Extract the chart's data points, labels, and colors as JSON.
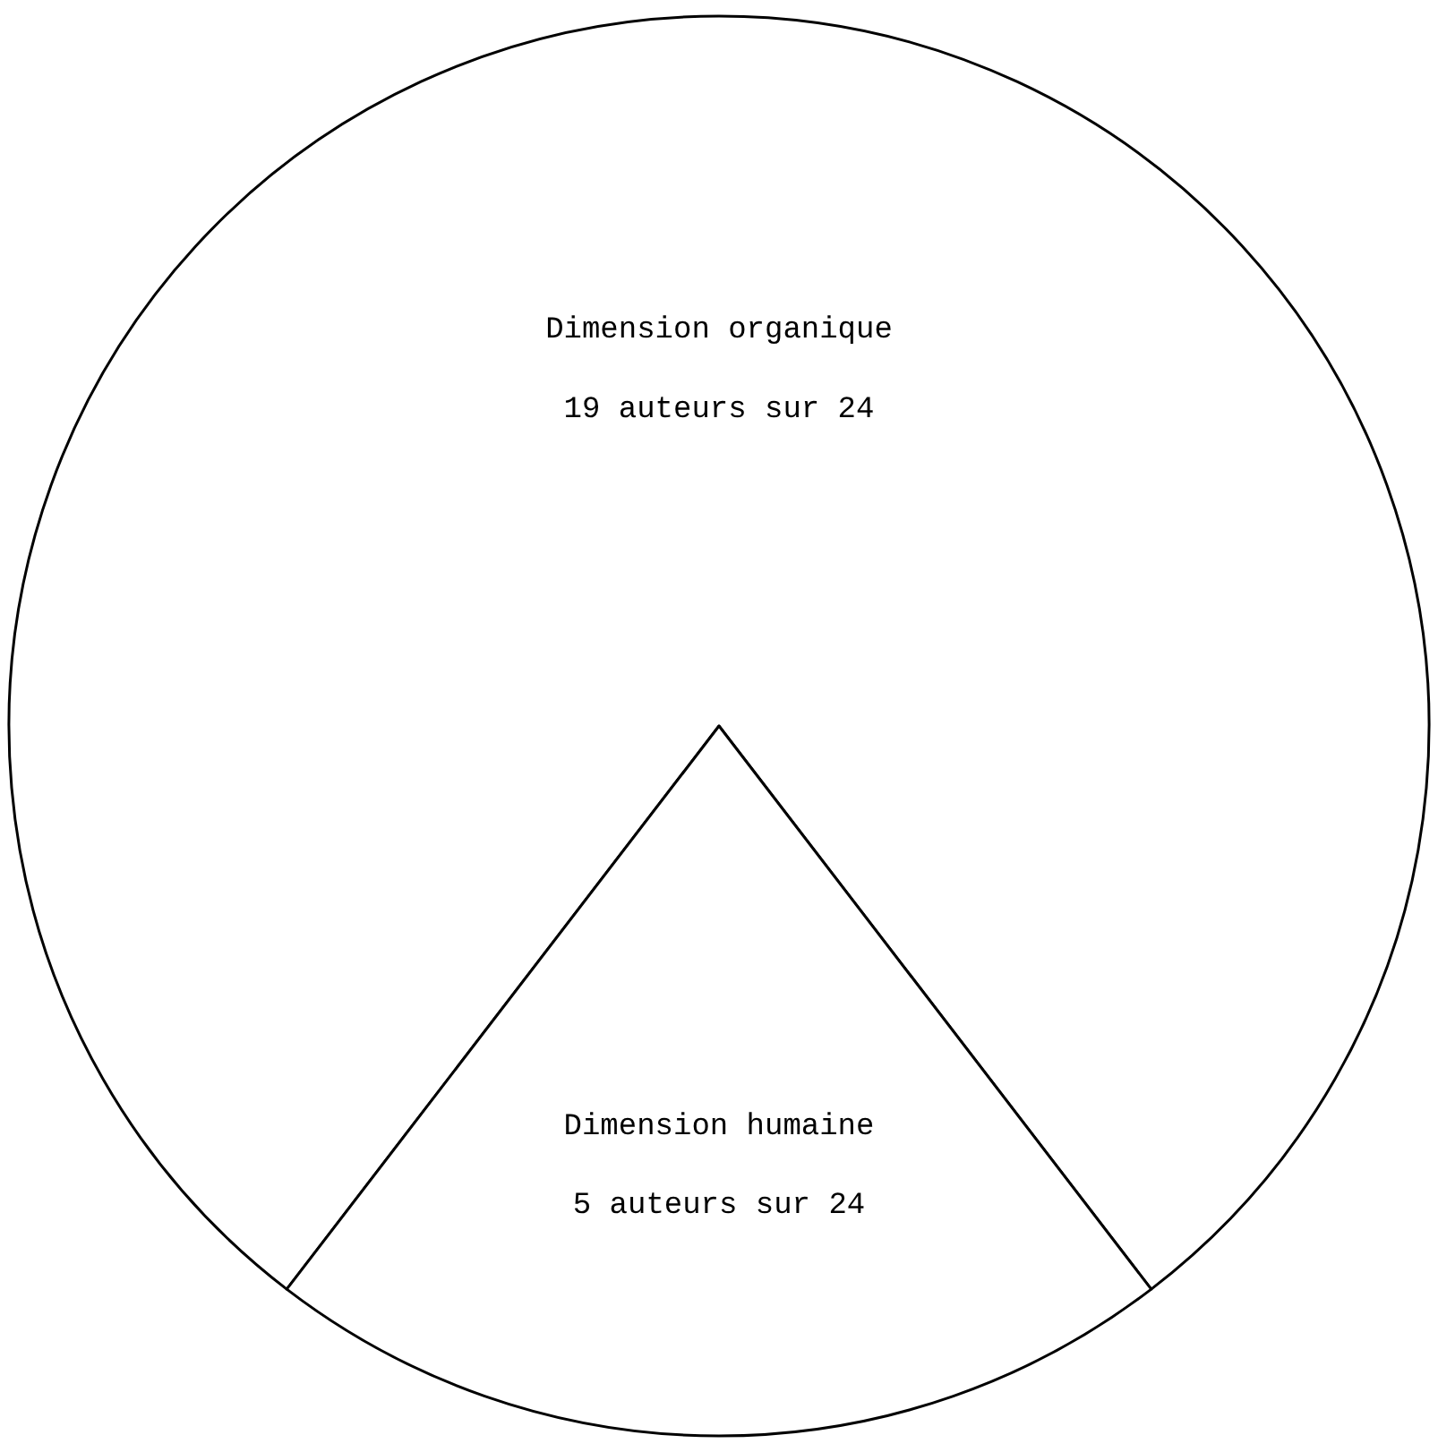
{
  "chart_data": {
    "type": "pie",
    "categories": [
      "Dimension organique",
      "Dimension humaine"
    ],
    "values": [
      19,
      5
    ],
    "value_labels": [
      "19 auteurs sur 24",
      "5 auteurs sur 24"
    ],
    "colors": [
      "#ffffff",
      "#ffffff"
    ],
    "legend": false
  }
}
